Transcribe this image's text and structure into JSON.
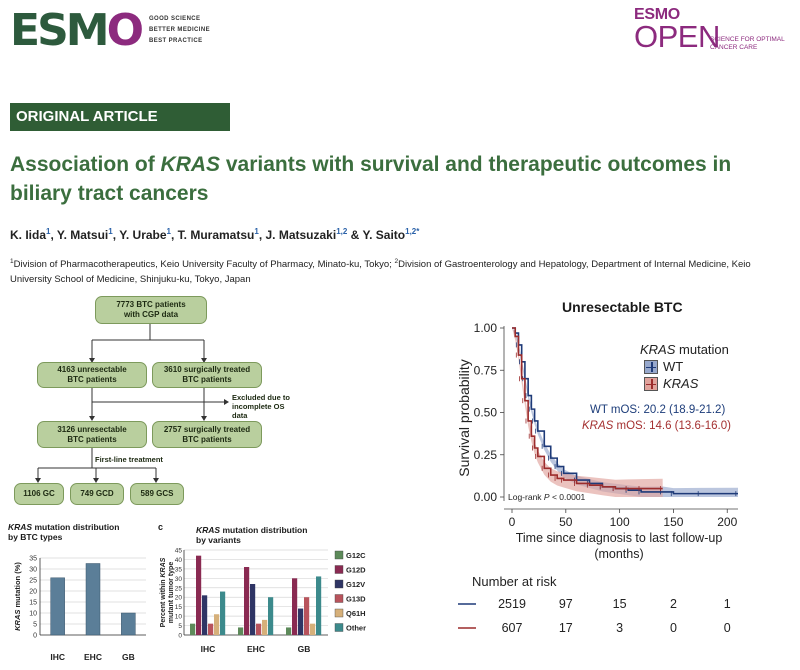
{
  "header": {
    "esmo_logo": "ESMO",
    "esmo_tagline": [
      "GOOD SCIENCE",
      "BETTER MEDICINE",
      "BEST PRACTICE"
    ],
    "open_logo_top": "ESMO",
    "open_logo_word": "OPEN",
    "open_logo_tagline": "SCIENCE FOR OPTIMAL CANCER CARE"
  },
  "article": {
    "type": "ORIGINAL ARTICLE",
    "title_before": "Association of ",
    "title_gene": "KRAS",
    "title_after": " variants with survival and therapeutic outcomes in biliary tract cancers",
    "authors": [
      {
        "name": "K. Iida",
        "aff": "1",
        "sep": ", "
      },
      {
        "name": "Y. Matsui",
        "aff": "1",
        "sep": ", "
      },
      {
        "name": "Y. Urabe",
        "aff": "1",
        "sep": ", "
      },
      {
        "name": "T. Muramatsu",
        "aff": "1",
        "sep": ", "
      },
      {
        "name": "J. Matsuzaki",
        "aff": "1,2",
        "sep": " & "
      },
      {
        "name": "Y. Saito",
        "aff": "1,2*",
        "sep": ""
      }
    ],
    "affiliations": [
      {
        "num": "1",
        "text": "Division of Pharmacotherapeutics, Keio University Faculty of Pharmacy, Minato-ku, Tokyo; "
      },
      {
        "num": "2",
        "text": "Division of Gastroenterology and Hepatology, Department of Internal Medicine, Keio University School of Medicine, Shinjuku-ku, Tokyo, Japan"
      }
    ]
  },
  "flowchart": {
    "start": "7773 BTC patients\nwith CGP data",
    "unresectable_1": "4163 unresectable\nBTC patients",
    "surgical_1": "3610 surgically treated\nBTC patients",
    "excluded": "Excluded due to\nincomplete OS data",
    "unresectable_2": "3126 unresectable\nBTC patients",
    "surgical_2": "2757 surgically treated\nBTC patients",
    "first_line": "First-line treatment",
    "gc": "1106 GC",
    "gcd": "749 GCD",
    "gcs": "589 GCS"
  },
  "chart_data": [
    {
      "type": "bar",
      "title_gene": "KRAS",
      "title_rest": " mutation distribution",
      "title_line2": "by BTC types",
      "ylabel_gene": "KRAS",
      "ylabel_rest": " mutation (%)",
      "categories": [
        "IHC",
        "EHC",
        "GB"
      ],
      "values": [
        26,
        32.5,
        10
      ],
      "yticks": [
        0,
        5,
        10,
        15,
        20,
        25,
        30,
        35
      ],
      "ylim": [
        0,
        35
      ],
      "color": "#5b7e98",
      "grid": true
    },
    {
      "type": "bar",
      "panel_label": "c",
      "title_gene": "KRAS",
      "title_rest": " mutation distribution",
      "title_line2": "by variants",
      "ylabel_line1": "Percent within ",
      "ylabel_gene": "KRAS",
      "ylabel_line2": "mutant tumor type",
      "categories": [
        "IHC",
        "EHC",
        "GB"
      ],
      "yticks": [
        0,
        5,
        10,
        15,
        20,
        25,
        30,
        35,
        40,
        45
      ],
      "ylim": [
        0,
        45
      ],
      "grid": true,
      "series": [
        {
          "name": "G12C",
          "color": "#5d8a5a",
          "values": [
            6,
            4,
            4
          ]
        },
        {
          "name": "G12D",
          "color": "#8a2a52",
          "values": [
            42,
            36,
            30
          ]
        },
        {
          "name": "G12V",
          "color": "#2f3565",
          "values": [
            21,
            27,
            14
          ]
        },
        {
          "name": "G13D",
          "color": "#b8535c",
          "values": [
            6,
            6,
            20
          ]
        },
        {
          "name": "Q61H",
          "color": "#d6b07a",
          "values": [
            11,
            8,
            6
          ]
        },
        {
          "name": "Other",
          "color": "#3c8a8c",
          "values": [
            23,
            20,
            31
          ]
        }
      ]
    },
    {
      "type": "line",
      "title": "Unresectable BTC",
      "ylabel": "Survival probability",
      "xlabel_line1": "Time since diagnosis to last follow-up",
      "xlabel_line2": "(months)",
      "xlim": [
        0,
        210
      ],
      "ylim": [
        0,
        1
      ],
      "xticks": [
        0,
        50,
        100,
        150,
        200
      ],
      "yticks": [
        "0.00",
        "0.25",
        "0.50",
        "0.75",
        "1.00"
      ],
      "legend_title_gene": "KRAS",
      "legend_title_rest": " mutation",
      "legend_position": "top-right",
      "mos_wt_label": "WT mOS: 20.2 (18.9-21.2)",
      "mos_kras_gene": "KRAS",
      "mos_kras_rest": " mOS: 14.6 (13.6-16.0)",
      "logrank_prefix": "Log-rank ",
      "logrank_p": "P",
      "logrank_rest": " < 0.0001",
      "series": [
        {
          "name": "WT",
          "color": "#1e3a78",
          "band": "#97a8cc",
          "x": [
            0,
            3,
            6,
            9,
            12,
            15,
            18,
            21,
            24,
            30,
            36,
            42,
            48,
            60,
            72,
            84,
            96,
            108,
            120,
            140,
            150,
            175,
            210
          ],
          "y": [
            1.0,
            0.97,
            0.9,
            0.8,
            0.7,
            0.6,
            0.52,
            0.45,
            0.39,
            0.3,
            0.23,
            0.18,
            0.14,
            0.1,
            0.08,
            0.06,
            0.05,
            0.04,
            0.03,
            0.03,
            0.02,
            0.02,
            0.02
          ]
        },
        {
          "name": "KRAS",
          "color": "#9c2c2c",
          "band": "#e0a39c",
          "x": [
            0,
            3,
            6,
            9,
            12,
            15,
            18,
            21,
            24,
            30,
            36,
            42,
            48,
            60,
            72,
            84,
            96,
            108,
            120,
            140
          ],
          "y": [
            1.0,
            0.95,
            0.84,
            0.7,
            0.57,
            0.45,
            0.36,
            0.29,
            0.24,
            0.17,
            0.13,
            0.11,
            0.1,
            0.08,
            0.07,
            0.06,
            0.05,
            0.05,
            0.05,
            0.05
          ]
        }
      ],
      "risk_table": {
        "title": "Number at risk",
        "rows": [
          {
            "color": "#1e3a78",
            "values": [
              "2519",
              "97",
              "15",
              "2",
              "1"
            ]
          },
          {
            "color": "#9c2c2c",
            "values": [
              "607",
              "17",
              "3",
              "0",
              "0"
            ]
          }
        ]
      }
    }
  ]
}
